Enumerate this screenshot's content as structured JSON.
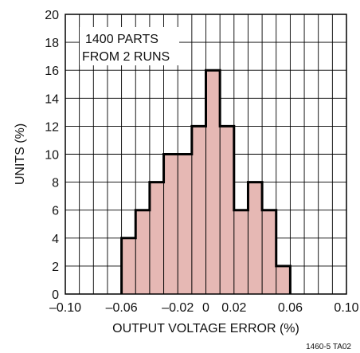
{
  "chart_data": {
    "type": "bar",
    "xlabel": "OUTPUT VOLTAGE ERROR (%)",
    "ylabel": "UNITS (%)",
    "xlim": [
      -0.1,
      0.1
    ],
    "ylim": [
      0,
      20
    ],
    "x_ticks": [
      "–0.10",
      "–0.06",
      "–0.02",
      "0",
      "0.02",
      "0.06",
      "0.10"
    ],
    "x_tick_values": [
      -0.1,
      -0.06,
      -0.02,
      0,
      0.02,
      0.06,
      0.1
    ],
    "y_ticks": [
      "0",
      "2",
      "4",
      "6",
      "8",
      "10",
      "12",
      "14",
      "16",
      "18",
      "20"
    ],
    "y_tick_values": [
      0,
      2,
      4,
      6,
      8,
      10,
      12,
      14,
      16,
      18,
      20
    ],
    "bin_width": 0.01,
    "bin_starts": [
      -0.06,
      -0.05,
      -0.04,
      -0.03,
      -0.02,
      -0.01,
      0.0,
      0.01,
      0.02,
      0.03,
      0.04,
      0.05
    ],
    "values": [
      4,
      6,
      8,
      10,
      10,
      12,
      16,
      12,
      6,
      8,
      6,
      2
    ],
    "annotation": [
      "1400 PARTS",
      "FROM 2 RUNS"
    ],
    "grid": true,
    "fill_color": "#e6b8b4",
    "outline_color": "#000000",
    "figure_code": "1460-5 TA02"
  }
}
